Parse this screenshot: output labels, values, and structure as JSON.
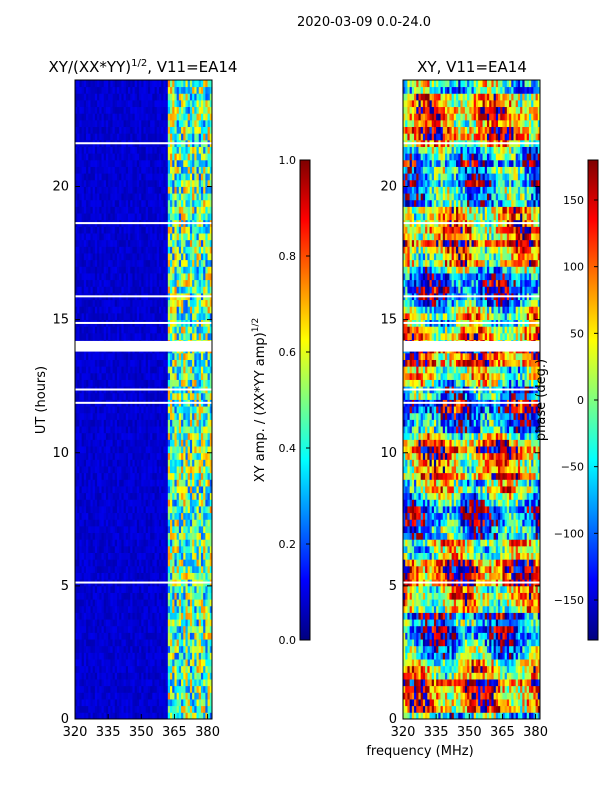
{
  "figure": {
    "suptitle": "2020-03-09 0.0-24.0",
    "shared_xlabel": "frequency (MHz)"
  },
  "colors": {
    "jet": [
      "#00007f",
      "#0000ff",
      "#007fff",
      "#00ffff",
      "#7fff7f",
      "#ffff00",
      "#ff7f00",
      "#ff0000",
      "#7f0000"
    ],
    "background": "#ffffff",
    "frame": "#000000"
  },
  "chart_data": [
    {
      "type": "heatmap",
      "title": "XY/(XX*YY)^1/2, V11=EA14",
      "title_main": "XY/(XX*YY)",
      "title_exp": "1/2",
      "title_suffix": ", V11=EA14",
      "xlabel": "frequency (MHz)",
      "ylabel": "UT (hours)",
      "xlim": [
        320,
        382
      ],
      "ylim": [
        0,
        24
      ],
      "xticks": [
        320,
        335,
        350,
        365,
        380
      ],
      "yticks": [
        0,
        5,
        10,
        15,
        20
      ],
      "colorbar": {
        "label": "XY amp. / (XX*YY amp)^1/2",
        "label_main": "XY amp. / (XX*YY amp)",
        "label_exp": "1/2",
        "range": [
          0.0,
          1.0
        ],
        "ticks": [
          0.0,
          0.2,
          0.4,
          0.6,
          0.8,
          1.0
        ],
        "tick_labels": [
          "0.0",
          "0.2",
          "0.4",
          "0.6",
          "0.8",
          "1.0"
        ]
      },
      "description_values": {
        "low_band_mhz": [
          320,
          362
        ],
        "low_band_level": 0.05,
        "high_band_mhz": [
          362,
          382
        ],
        "high_band_level_range": [
          0.2,
          0.75
        ],
        "flag_gap_hours": [
          13.8,
          14.2
        ]
      }
    },
    {
      "type": "heatmap",
      "title": "XY, V11=EA14",
      "xlabel": "frequency (MHz)",
      "ylabel": "",
      "xlim": [
        320,
        382
      ],
      "ylim": [
        0,
        24
      ],
      "xticks": [
        320,
        335,
        350,
        365,
        380
      ],
      "yticks": [
        0,
        5,
        10,
        15,
        20
      ],
      "colorbar": {
        "label": "phase (deg.)",
        "range": [
          -180,
          180
        ],
        "ticks": [
          -150,
          -100,
          -50,
          0,
          50,
          100,
          150
        ],
        "tick_labels": [
          "−150",
          "−100",
          "−50",
          "0",
          "50",
          "100",
          "150"
        ]
      },
      "description_values": {
        "phase_range_deg": [
          -180,
          180
        ],
        "flag_gap_hours": [
          13.8,
          14.2
        ]
      }
    }
  ]
}
